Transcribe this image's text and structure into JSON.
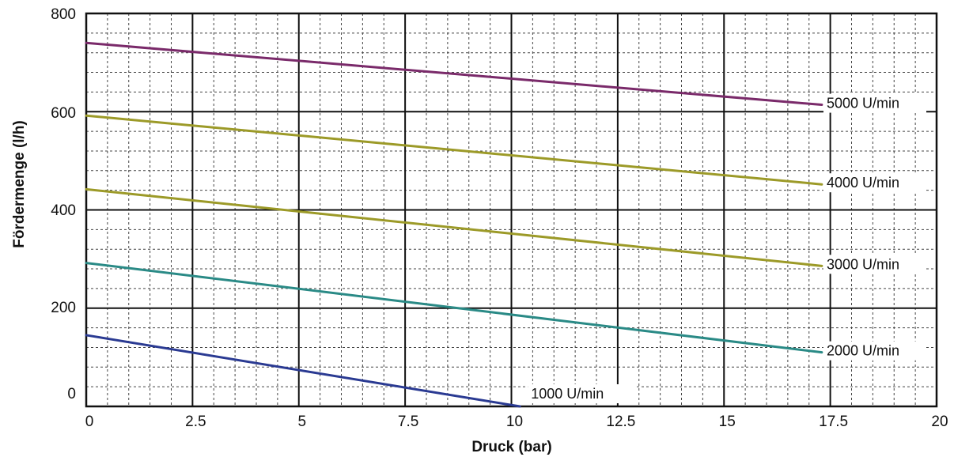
{
  "chart_data": {
    "type": "line",
    "title": "",
    "xlabel": "Druck (bar)",
    "ylabel": "Fördermenge (l/h)",
    "xlim": [
      0,
      20
    ],
    "ylim": [
      0,
      800
    ],
    "x_ticks": [
      0,
      2.5,
      5,
      7.5,
      10,
      12.5,
      15,
      17.5,
      20
    ],
    "x_tick_labels": [
      "0",
      "2.5",
      "5",
      "7.5",
      "10",
      "12.5",
      "15",
      "17.5",
      "20"
    ],
    "y_ticks": [
      0,
      200,
      400,
      600,
      800
    ],
    "y_tick_labels": [
      "0",
      "200",
      "400",
      "600",
      "800"
    ],
    "grid": true,
    "legend": "inline-labels-at-line-ends",
    "series": [
      {
        "name": "5000 U/min",
        "color": "#7a2a6a",
        "x": [
          0,
          17.3
        ],
        "y": [
          740,
          614
        ]
      },
      {
        "name": "4000 U/min",
        "color": "#9c9a28",
        "x": [
          0,
          17.3
        ],
        "y": [
          592,
          452
        ]
      },
      {
        "name": "3000 U/min",
        "color": "#9c9a28",
        "x": [
          0,
          17.3
        ],
        "y": [
          442,
          286
        ]
      },
      {
        "name": "2000 U/min",
        "color": "#2a8a86",
        "x": [
          0,
          17.3
        ],
        "y": [
          292,
          110
        ]
      },
      {
        "name": "1000 U/min",
        "color": "#2a3a92",
        "x": [
          0,
          10.2
        ],
        "y": [
          145,
          0
        ]
      }
    ]
  }
}
